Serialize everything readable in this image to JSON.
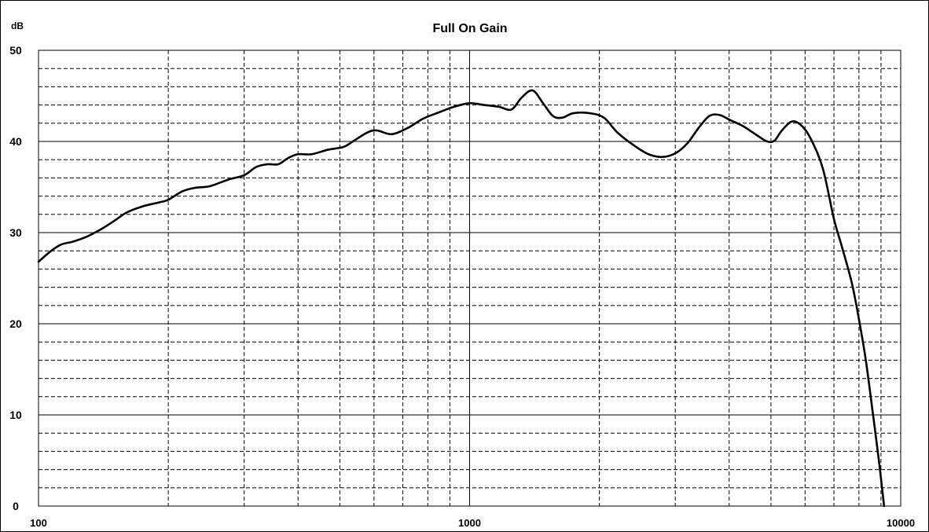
{
  "chart_data": {
    "type": "line",
    "title": "Full On Gain",
    "ylabel": "dB",
    "xlabel": "",
    "xscale": "log",
    "xlim": [
      100,
      10000
    ],
    "ylim": [
      0,
      50
    ],
    "x_ticks": [
      "100",
      "1000",
      "10000"
    ],
    "y_ticks": [
      "0",
      "10",
      "20",
      "30",
      "40",
      "50"
    ],
    "grid": true,
    "legend": "none",
    "series": [
      {
        "color": "#000000",
        "points": [
          [
            100,
            26.8
          ],
          [
            107,
            28.0
          ],
          [
            113,
            28.7
          ],
          [
            120,
            29.0
          ],
          [
            130,
            29.6
          ],
          [
            140,
            30.4
          ],
          [
            150,
            31.3
          ],
          [
            160,
            32.2
          ],
          [
            175,
            32.9
          ],
          [
            190,
            33.3
          ],
          [
            200,
            33.6
          ],
          [
            215,
            34.5
          ],
          [
            230,
            34.9
          ],
          [
            250,
            35.1
          ],
          [
            275,
            35.8
          ],
          [
            300,
            36.3
          ],
          [
            320,
            37.2
          ],
          [
            340,
            37.5
          ],
          [
            360,
            37.5
          ],
          [
            380,
            38.2
          ],
          [
            400,
            38.6
          ],
          [
            430,
            38.6
          ],
          [
            470,
            39.1
          ],
          [
            510,
            39.4
          ],
          [
            540,
            40.1
          ],
          [
            580,
            41.0
          ],
          [
            610,
            41.2
          ],
          [
            660,
            40.8
          ],
          [
            720,
            41.5
          ],
          [
            780,
            42.5
          ],
          [
            850,
            43.2
          ],
          [
            920,
            43.8
          ],
          [
            1000,
            44.2
          ],
          [
            1080,
            44.0
          ],
          [
            1170,
            43.8
          ],
          [
            1250,
            43.5
          ],
          [
            1320,
            44.8
          ],
          [
            1400,
            45.6
          ],
          [
            1480,
            44.2
          ],
          [
            1560,
            42.8
          ],
          [
            1640,
            42.6
          ],
          [
            1740,
            43.1
          ],
          [
            1900,
            43.1
          ],
          [
            2050,
            42.6
          ],
          [
            2200,
            41.0
          ],
          [
            2400,
            39.6
          ],
          [
            2600,
            38.6
          ],
          [
            2800,
            38.3
          ],
          [
            3000,
            38.7
          ],
          [
            3200,
            39.8
          ],
          [
            3400,
            41.5
          ],
          [
            3600,
            42.8
          ],
          [
            3800,
            42.9
          ],
          [
            4000,
            42.4
          ],
          [
            4300,
            41.7
          ],
          [
            4600,
            40.8
          ],
          [
            4900,
            40.0
          ],
          [
            5100,
            40.1
          ],
          [
            5300,
            41.2
          ],
          [
            5600,
            42.2
          ],
          [
            5900,
            41.7
          ],
          [
            6200,
            40.2
          ],
          [
            6600,
            37.0
          ],
          [
            7000,
            31.5
          ],
          [
            7300,
            28.5
          ],
          [
            7700,
            24.5
          ],
          [
            8000,
            20.5
          ],
          [
            8300,
            16.0
          ],
          [
            8600,
            10.5
          ],
          [
            8900,
            5.0
          ],
          [
            9150,
            0.0
          ]
        ]
      }
    ]
  }
}
